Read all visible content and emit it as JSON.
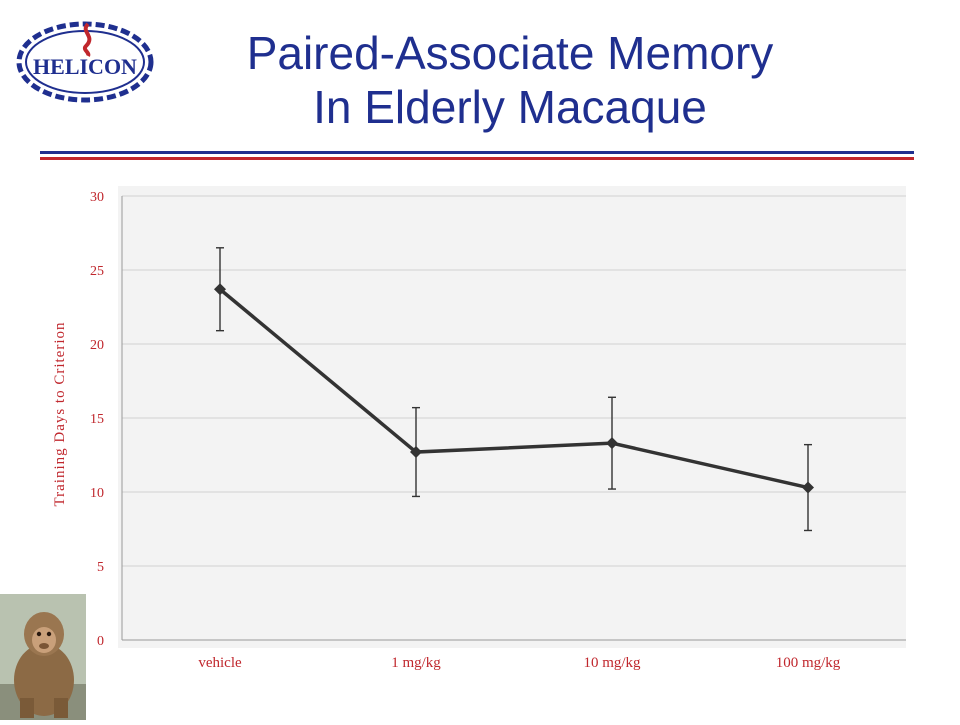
{
  "logo": {
    "text": "HELICON"
  },
  "header": {
    "title_line1": "Paired-Associate Memory",
    "title_line2": "In Elderly Macaque"
  },
  "colors": {
    "title": "#1f2f8f",
    "rule_blue": "#1f2f8f",
    "rule_red": "#c0272d",
    "axis_text": "#c0272d",
    "series_line": "#333333"
  },
  "chart_data": {
    "type": "line",
    "categories": [
      "vehicle",
      "1 mg/kg",
      "10 mg/kg",
      "100 mg/kg"
    ],
    "series": [
      {
        "values": [
          23.7,
          12.7,
          13.3,
          10.3
        ],
        "error": [
          2.8,
          3.0,
          3.1,
          2.9
        ]
      }
    ],
    "ylabel": "Training Days to Criterion",
    "xlabel": "",
    "ylim": [
      0,
      30
    ],
    "yticks": [
      0,
      5,
      10,
      15,
      20,
      25,
      30
    ],
    "grid": true,
    "marker": "diamond"
  }
}
